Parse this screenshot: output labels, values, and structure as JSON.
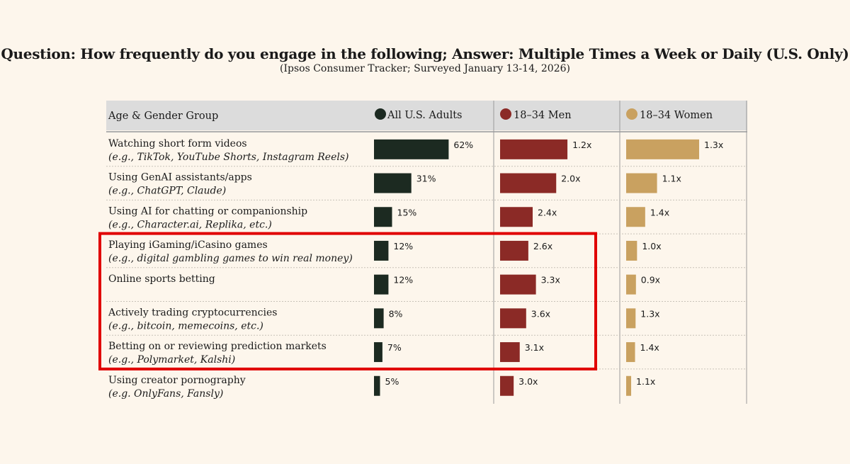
{
  "title": "Question: How frequently do you engage in the following; Answer: Multiple Times a Week or Daily (U.S. Only)",
  "subtitle": "(Ipsos Consumer Tracker; Surveyed January 13-14, 2026)",
  "colors": {
    "all": "#1c2a21",
    "men": "#8b2a26",
    "women": "#c9a160",
    "header_bg": "#dcdcdc",
    "highlight": "#e00000"
  },
  "chart_data": {
    "type": "bar",
    "orientation": "horizontal",
    "header_label": "Age & Gender Group",
    "categories": [
      {
        "label": "Watching short form videos",
        "sub": "(e.g., TikTok, YouTube Shorts, Instagram Reels)"
      },
      {
        "label": "Using GenAI assistants/apps",
        "sub": "(e.g., ChatGPT, Claude)"
      },
      {
        "label": "Using AI for chatting or companionship",
        "sub": "(e.g., Character.ai, Replika, etc.)"
      },
      {
        "label": "Playing iGaming/iCasino games",
        "sub": "(e.g., digital gambling games to win real money)"
      },
      {
        "label": "Online sports betting",
        "sub": ""
      },
      {
        "label": "Actively trading cryptocurrencies",
        "sub": "(e.g., bitcoin, memecoins, etc.)"
      },
      {
        "label": "Betting on or reviewing prediction markets",
        "sub": "(e.g., Polymarket, Kalshi)"
      },
      {
        "label": "Using creator pornography",
        "sub": "(e.g. OnlyFans, Fansly)"
      }
    ],
    "series": [
      {
        "name": "All U.S. Adults",
        "key": "all",
        "values": [
          62,
          31,
          15,
          12,
          12,
          8,
          7,
          5
        ],
        "labels": [
          "62%",
          "31%",
          "15%",
          "12%",
          "12%",
          "8%",
          "7%",
          "5%"
        ]
      },
      {
        "name": "18–34 Men",
        "key": "men",
        "multipliers": [
          1.2,
          2.0,
          2.4,
          2.6,
          3.3,
          3.6,
          3.1,
          3.0
        ],
        "labels": [
          "1.2x",
          "2.0x",
          "2.4x",
          "2.6x",
          "3.3x",
          "3.6x",
          "3.1x",
          "3.0x"
        ]
      },
      {
        "name": "18–34 Women",
        "key": "women",
        "multipliers": [
          1.3,
          1.1,
          1.4,
          1.0,
          0.9,
          1.3,
          1.4,
          1.1
        ],
        "labels": [
          "1.3x",
          "1.1x",
          "1.4x",
          "1.0x",
          "0.9x",
          "1.3x",
          "1.4x",
          "1.1x"
        ]
      }
    ],
    "highlighted_rows": [
      3,
      4,
      5,
      6
    ]
  }
}
